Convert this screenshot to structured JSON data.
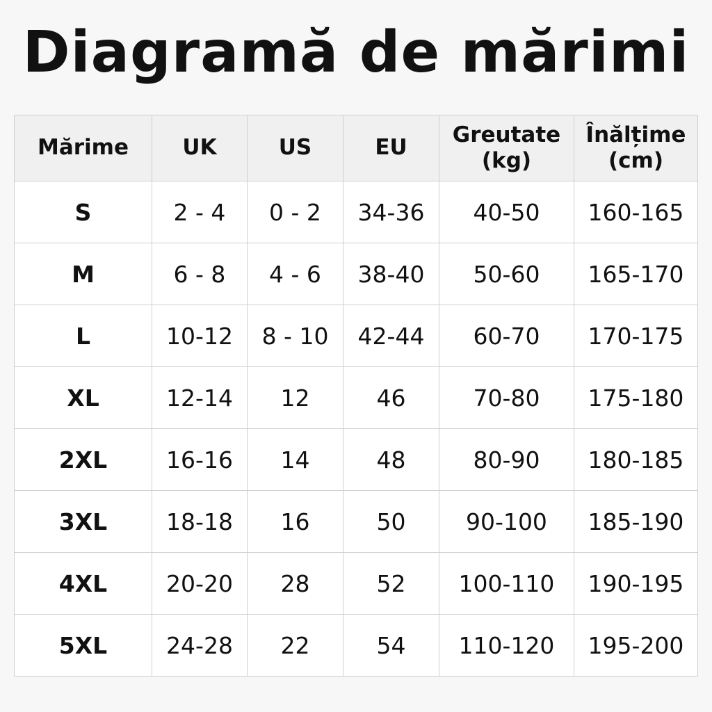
{
  "title": "Diagramă de mărimi",
  "table": {
    "headers": [
      "Mărime",
      "UK",
      "US",
      "EU",
      "Greutate\n(kg)",
      "Înălțime\n(cm)"
    ],
    "header_lines": [
      [
        "Mărime"
      ],
      [
        "UK"
      ],
      [
        "US"
      ],
      [
        "EU"
      ],
      [
        "Greutate",
        "(kg)"
      ],
      [
        "Înălțime",
        "(cm)"
      ]
    ],
    "rows": [
      [
        "S",
        "2 - 4",
        "0 - 2",
        "34-36",
        "40-50",
        "160-165"
      ],
      [
        "M",
        "6 - 8",
        "4 - 6",
        "38-40",
        "50-60",
        "165-170"
      ],
      [
        "L",
        "10-12",
        "8 - 10",
        "42-44",
        "60-70",
        "170-175"
      ],
      [
        "XL",
        "12-14",
        "12",
        "46",
        "70-80",
        "175-180"
      ],
      [
        "2XL",
        "16-16",
        "14",
        "48",
        "80-90",
        "180-185"
      ],
      [
        "3XL",
        "18-18",
        "16",
        "50",
        "90-100",
        "185-190"
      ],
      [
        "4XL",
        "20-20",
        "28",
        "52",
        "100-110",
        "190-195"
      ],
      [
        "5XL",
        "24-28",
        "22",
        "54",
        "110-120",
        "195-200"
      ]
    ]
  }
}
